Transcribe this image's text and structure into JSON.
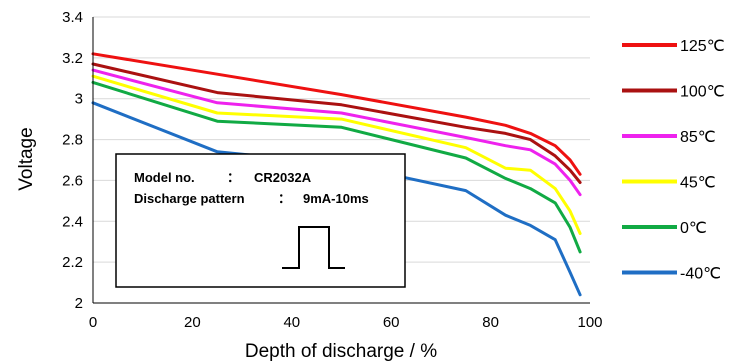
{
  "chart_data": {
    "type": "line",
    "xlabel": "Depth of discharge / %",
    "ylabel": "Voltage",
    "xlim": [
      0,
      100
    ],
    "ylim": [
      2,
      3.4
    ],
    "xticks": [
      "0",
      "20",
      "40",
      "60",
      "80",
      "100"
    ],
    "yticks": [
      "2",
      "2.2",
      "2.4",
      "2.6",
      "2.8",
      "3",
      "3.2",
      "3.4"
    ],
    "grid": "horizontal",
    "legend_position": "right",
    "series": [
      {
        "name": "125℃",
        "color": "#ee1111",
        "x": [
          0,
          25,
          50,
          75,
          83,
          88,
          93,
          96,
          98
        ],
        "y": [
          3.22,
          3.12,
          3.02,
          2.91,
          2.87,
          2.83,
          2.77,
          2.7,
          2.63
        ]
      },
      {
        "name": "100℃",
        "color": "#aa1111",
        "x": [
          0,
          25,
          50,
          75,
          83,
          88,
          93,
          96,
          98
        ],
        "y": [
          3.17,
          3.03,
          2.97,
          2.86,
          2.83,
          2.8,
          2.72,
          2.65,
          2.59
        ]
      },
      {
        "name": "85℃",
        "color": "#ee22ee",
        "x": [
          0,
          25,
          50,
          75,
          83,
          88,
          93,
          96,
          98
        ],
        "y": [
          3.14,
          2.98,
          2.93,
          2.81,
          2.77,
          2.75,
          2.68,
          2.6,
          2.53
        ]
      },
      {
        "name": "45℃",
        "color": "#ffff00",
        "x": [
          0,
          25,
          50,
          75,
          83,
          88,
          93,
          96,
          98
        ],
        "y": [
          3.11,
          2.93,
          2.9,
          2.76,
          2.66,
          2.65,
          2.56,
          2.45,
          2.34
        ]
      },
      {
        "name": "0℃",
        "color": "#11aa44",
        "x": [
          0,
          25,
          50,
          75,
          83,
          88,
          93,
          96,
          98
        ],
        "y": [
          3.08,
          2.89,
          2.86,
          2.71,
          2.61,
          2.56,
          2.49,
          2.37,
          2.25
        ]
      },
      {
        "name": "-40℃",
        "color": "#1f6ec4",
        "x": [
          0,
          25,
          50,
          75,
          83,
          88,
          93,
          96,
          98
        ],
        "y": [
          2.98,
          2.74,
          2.68,
          2.55,
          2.43,
          2.38,
          2.31,
          2.15,
          2.04
        ]
      }
    ],
    "annotation": {
      "line1_label": "Model no.",
      "line1_sep": "：",
      "line1_value": "CR2032A",
      "line2_label": "Discharge pattern",
      "line2_sep": "：",
      "line2_value": "9mA-10ms"
    }
  }
}
